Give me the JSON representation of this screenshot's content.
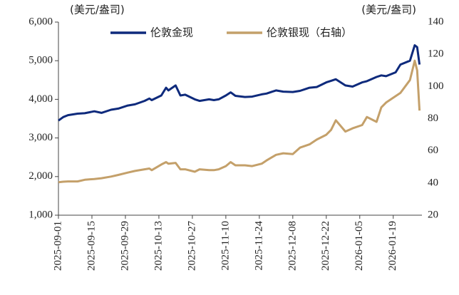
{
  "chart_data": {
    "type": "line",
    "y_label": "(美元/盎司)",
    "y2_label": "(美元/盎司)",
    "x": [
      "2025-09-01",
      "2025-09-03",
      "2025-09-05",
      "2025-09-09",
      "2025-09-12",
      "2025-09-16",
      "2025-09-19",
      "2025-09-23",
      "2025-09-26",
      "2025-09-30",
      "2025-10-03",
      "2025-10-07",
      "2025-10-09",
      "2025-10-10",
      "2025-10-14",
      "2025-10-16",
      "2025-10-17",
      "2025-10-20",
      "2025-10-22",
      "2025-10-24",
      "2025-10-28",
      "2025-10-30",
      "2025-11-03",
      "2025-11-05",
      "2025-11-07",
      "2025-11-10",
      "2025-11-12",
      "2025-11-14",
      "2025-11-18",
      "2025-11-21",
      "2025-11-25",
      "2025-11-27",
      "2025-12-01",
      "2025-12-04",
      "2025-12-08",
      "2025-12-11",
      "2025-12-15",
      "2025-12-18",
      "2025-12-22",
      "2025-12-24",
      "2025-12-26",
      "2025-12-30",
      "2026-01-02",
      "2026-01-06",
      "2026-01-08",
      "2026-01-12",
      "2026-01-14",
      "2026-01-16",
      "2026-01-20",
      "2026-01-22",
      "2026-01-26",
      "2026-01-28",
      "2026-01-29",
      "2026-01-30"
    ],
    "series": [
      {
        "name": "伦敦金现",
        "color": "#0e2a7c",
        "values": [
          3450,
          3540,
          3590,
          3630,
          3640,
          3690,
          3650,
          3730,
          3760,
          3840,
          3870,
          3960,
          4020,
          3980,
          4100,
          4300,
          4230,
          4360,
          4100,
          4120,
          4000,
          3960,
          4000,
          3980,
          4000,
          4100,
          4180,
          4090,
          4060,
          4070,
          4130,
          4150,
          4230,
          4200,
          4190,
          4220,
          4300,
          4320,
          4440,
          4480,
          4520,
          4360,
          4330,
          4440,
          4470,
          4580,
          4620,
          4600,
          4700,
          4900,
          5000,
          5400,
          5350,
          4900
        ]
      },
      {
        "name": "伦敦银现（右轴）",
        "color": "#c4a06a",
        "axis": "y2",
        "values": [
          40.5,
          40.8,
          41,
          41,
          42,
          42.5,
          43,
          44,
          45,
          46.5,
          47.5,
          48.5,
          49,
          48,
          51.5,
          53,
          52,
          52.5,
          48.5,
          48.5,
          47,
          48.5,
          48,
          48,
          48.5,
          50.5,
          53,
          51,
          51,
          50.5,
          52,
          54,
          57.5,
          58.5,
          58,
          62,
          64,
          67,
          70,
          73,
          79,
          72,
          74,
          76,
          81,
          78,
          87,
          90,
          94,
          96,
          104,
          116,
          110,
          85
        ]
      }
    ],
    "xlim": [
      "2025-09-01",
      "2026-01-31"
    ],
    "xticks": [
      "2025-09-01",
      "2025-09-15",
      "2025-09-29",
      "2025-10-13",
      "2025-10-27",
      "2025-11-10",
      "2025-11-24",
      "2025-12-08",
      "2025-12-22",
      "2026-01-05",
      "2026-01-19"
    ],
    "ylim": [
      1000,
      6000
    ],
    "yticks": [
      {
        "value": 1000,
        "label": "1,000"
      },
      {
        "value": 2000,
        "label": "2,000"
      },
      {
        "value": 3000,
        "label": "3,000"
      },
      {
        "value": 4000,
        "label": "4,000"
      },
      {
        "value": 5000,
        "label": "5,000"
      },
      {
        "value": 6000,
        "label": "6,000"
      }
    ],
    "y2lim": [
      20,
      140
    ],
    "y2ticks": [
      20,
      40,
      60,
      80,
      100,
      120,
      140
    ],
    "legend": "top"
  }
}
